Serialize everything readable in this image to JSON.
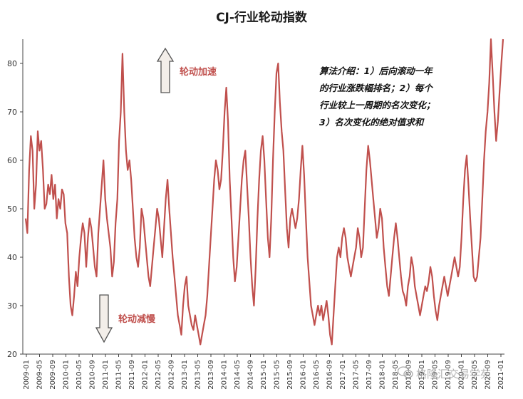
{
  "chart_data": {
    "type": "line",
    "title": "CJ-行业轮动指数",
    "ylim": [
      20,
      85
    ],
    "yticks": [
      20,
      30,
      40,
      50,
      60,
      70,
      80
    ],
    "x_tick_labels": [
      "2009-01",
      "2009-05",
      "2009-09",
      "2010-01",
      "2010-05",
      "2010-09",
      "2011-01",
      "2011-05",
      "2011-09",
      "2012-01",
      "2012-05",
      "2012-09",
      "2013-01",
      "2013-05",
      "2013-09",
      "2014-01",
      "2014-05",
      "2014-09",
      "2015-01",
      "2015-05",
      "2015-09",
      "2016-01",
      "2016-05",
      "2016-09",
      "2017-01",
      "2017-05",
      "2017-09",
      "2018-01",
      "2018-05",
      "2018-09",
      "2019-01",
      "2019-05",
      "2019-09",
      "2020-01",
      "2020-05",
      "2020-09",
      "2021-01"
    ],
    "line_color": "#c0504d",
    "series": [
      {
        "values": [
          48,
          45,
          58,
          65,
          62,
          50,
          55,
          66,
          62,
          64,
          58,
          50,
          51,
          55,
          53,
          57,
          52,
          55,
          48,
          52,
          50,
          54,
          53,
          47,
          45,
          36,
          30,
          28,
          32,
          37,
          34,
          40,
          44,
          47,
          45,
          38,
          44,
          48,
          46,
          42,
          38,
          36,
          45,
          50,
          55,
          60,
          52,
          48,
          45,
          42,
          36,
          39,
          47,
          52,
          64,
          70,
          82,
          70,
          62,
          58,
          60,
          56,
          50,
          44,
          40,
          38,
          42,
          50,
          48,
          44,
          40,
          36,
          34,
          38,
          42,
          46,
          50,
          48,
          44,
          40,
          46,
          52,
          56,
          50,
          45,
          40,
          36,
          32,
          28,
          26,
          24,
          30,
          34,
          36,
          30,
          28,
          26,
          25,
          28,
          26,
          24,
          22,
          24,
          26,
          28,
          32,
          38,
          44,
          50,
          56,
          60,
          58,
          54,
          56,
          62,
          70,
          75,
          68,
          56,
          48,
          40,
          35,
          38,
          44,
          50,
          56,
          60,
          62,
          55,
          48,
          40,
          34,
          30,
          38,
          48,
          56,
          62,
          65,
          60,
          52,
          44,
          40,
          48,
          60,
          70,
          78,
          80,
          72,
          66,
          62,
          54,
          46,
          42,
          48,
          50,
          48,
          46,
          48,
          52,
          58,
          63,
          57,
          48,
          40,
          35,
          30,
          28,
          26,
          28,
          30,
          28,
          30,
          27,
          29,
          31,
          28,
          24,
          22,
          28,
          34,
          40,
          42,
          40,
          44,
          46,
          44,
          40,
          38,
          36,
          38,
          40,
          42,
          46,
          44,
          40,
          42,
          50,
          58,
          63,
          60,
          56,
          52,
          48,
          44,
          46,
          50,
          48,
          42,
          38,
          34,
          32,
          36,
          40,
          44,
          47,
          44,
          40,
          36,
          33,
          32,
          30,
          34,
          36,
          40,
          38,
          34,
          32,
          30,
          28,
          30,
          32,
          34,
          33,
          35,
          38,
          36,
          32,
          29,
          27,
          30,
          32,
          34,
          36,
          34,
          32,
          34,
          36,
          38,
          40,
          38,
          36,
          38,
          44,
          52,
          58,
          61,
          55,
          48,
          42,
          36,
          35,
          36,
          40,
          44,
          52,
          60,
          66,
          70,
          76,
          86,
          78,
          70,
          64,
          68,
          74,
          80,
          85
        ]
      }
    ]
  },
  "annotations": {
    "up_label": "轮动加速",
    "down_label": "轮动减慢",
    "note_lines": [
      "算法介绍：1）后向滚动一年",
      "的行业涨跌幅排名；2）每个",
      "行业较上一周期的名次变化；",
      "3）名次变化的绝对值求和"
    ]
  },
  "watermark": {
    "text": "格隆汇交易学苑",
    "icon": "wechat-icon"
  }
}
